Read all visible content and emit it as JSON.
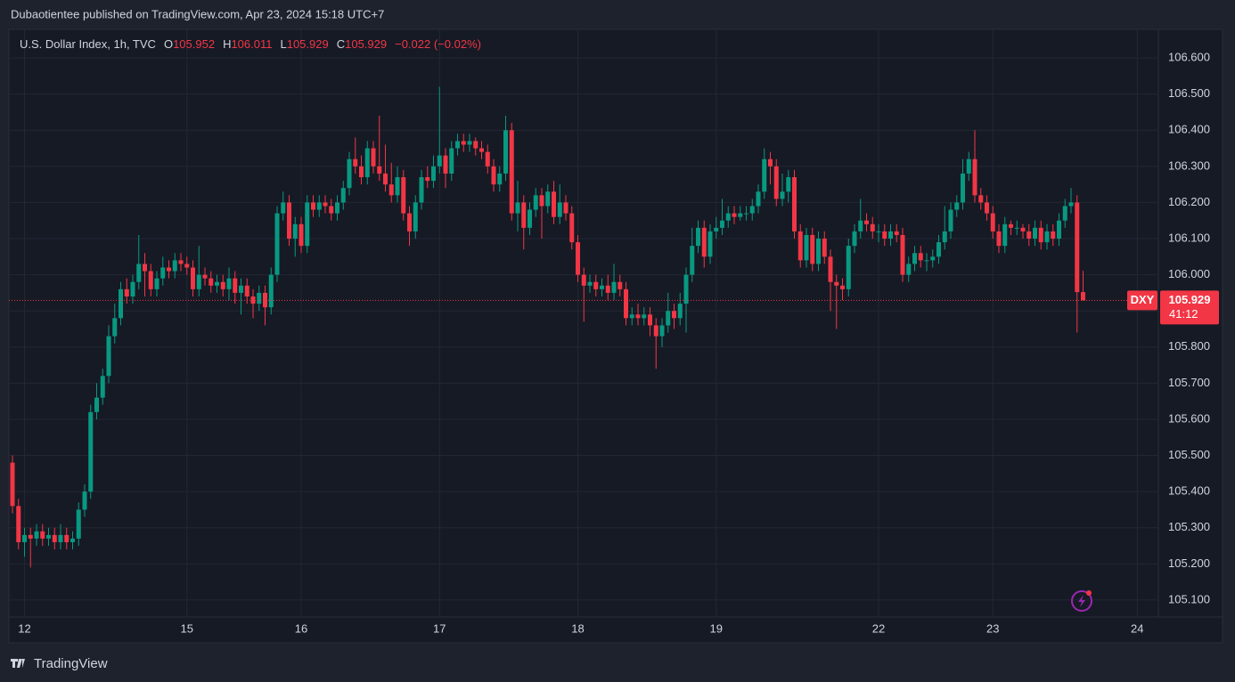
{
  "header": {
    "title": "Dubaotientee published on TradingView.com, Apr 23, 2024 15:18 UTC+7"
  },
  "footer": {
    "brand": "TradingView"
  },
  "chart_data": {
    "type": "candlestick",
    "title": "U.S. Dollar Index, 1h, TVC",
    "legend_labels": {
      "open": "O",
      "high": "H",
      "low": "L",
      "close": "C"
    },
    "change_label": "−0.022 (−0.02%)",
    "symbol": "DXY",
    "countdown": "41:12",
    "up_color": "#089981",
    "down_color": "#f23645",
    "grid": true,
    "ylim": [
      105.053,
      106.679
    ],
    "yticks": [
      {
        "value": 105.1,
        "label": "105.100"
      },
      {
        "value": 105.2,
        "label": "105.200"
      },
      {
        "value": 105.3,
        "label": "105.300"
      },
      {
        "value": 105.4,
        "label": "105.400"
      },
      {
        "value": 105.5,
        "label": "105.500"
      },
      {
        "value": 105.6,
        "label": "105.600"
      },
      {
        "value": 105.7,
        "label": "105.700"
      },
      {
        "value": 105.8,
        "label": "105.800"
      },
      {
        "value": 105.9,
        "label": "105.900"
      },
      {
        "value": 106.0,
        "label": "106.000"
      },
      {
        "value": 106.1,
        "label": "106.100"
      },
      {
        "value": 106.2,
        "label": "106.200"
      },
      {
        "value": 106.3,
        "label": "106.300"
      },
      {
        "value": 106.4,
        "label": "106.400"
      },
      {
        "value": 106.5,
        "label": "106.500"
      },
      {
        "value": 106.6,
        "label": "106.600"
      }
    ],
    "categories": [
      null,
      null,
      "12",
      null,
      null,
      null,
      null,
      null,
      null,
      null,
      null,
      null,
      null,
      null,
      null,
      null,
      null,
      null,
      null,
      null,
      null,
      null,
      null,
      null,
      null,
      null,
      null,
      null,
      null,
      "15",
      null,
      null,
      null,
      null,
      null,
      null,
      null,
      null,
      null,
      null,
      null,
      null,
      null,
      null,
      null,
      null,
      null,
      null,
      "16",
      null,
      null,
      null,
      null,
      null,
      null,
      null,
      null,
      null,
      null,
      null,
      null,
      null,
      null,
      null,
      null,
      null,
      null,
      null,
      null,
      null,
      null,
      "17",
      null,
      null,
      null,
      null,
      null,
      null,
      null,
      null,
      null,
      null,
      null,
      null,
      null,
      null,
      null,
      null,
      null,
      null,
      null,
      null,
      null,
      null,
      "18",
      null,
      null,
      null,
      null,
      null,
      null,
      null,
      null,
      null,
      null,
      null,
      null,
      null,
      null,
      null,
      null,
      null,
      null,
      null,
      null,
      null,
      null,
      "19",
      null,
      null,
      null,
      null,
      null,
      null,
      null,
      null,
      null,
      null,
      null,
      null,
      null,
      null,
      null,
      null,
      null,
      null,
      null,
      null,
      null,
      null,
      null,
      null,
      null,
      null,
      "22",
      null,
      null,
      null,
      null,
      null,
      null,
      null,
      null,
      null,
      null,
      null,
      null,
      null,
      null,
      null,
      null,
      null,
      null,
      "23",
      null,
      null,
      null,
      null,
      null,
      null,
      null,
      null,
      null,
      null,
      null,
      null,
      null,
      null,
      null,
      null,
      null,
      null,
      null,
      null,
      null,
      null,
      null,
      "24"
    ],
    "open": [
      105.48,
      105.36,
      105.26,
      105.28,
      105.27,
      105.29,
      105.27,
      105.28,
      105.26,
      105.28,
      105.26,
      105.27,
      105.35,
      105.4,
      105.62,
      105.66,
      105.72,
      105.83,
      105.88,
      105.96,
      105.94,
      105.98,
      106.03,
      106.01,
      105.96,
      105.99,
      106.02,
      106.01,
      106.04,
      106.03,
      106.02,
      105.96,
      106.0,
      105.99,
      105.97,
      105.98,
      105.96,
      105.99,
      105.95,
      105.97,
      105.94,
      105.92,
      105.95,
      105.91,
      106.0,
      106.17,
      106.2,
      106.1,
      106.14,
      106.08,
      106.2,
      106.18,
      106.2,
      106.19,
      106.17,
      106.2,
      106.24,
      106.32,
      106.3,
      106.27,
      106.35,
      106.3,
      106.28,
      106.25,
      106.22,
      106.27,
      106.17,
      106.12,
      106.2,
      106.27,
      106.26,
      106.3,
      106.33,
      106.28,
      106.35,
      106.37,
      106.36,
      106.37,
      106.35,
      106.34,
      106.3,
      106.25,
      106.28,
      106.4,
      106.17,
      106.2,
      106.13,
      106.18,
      106.22,
      106.19,
      106.23,
      106.16,
      106.2,
      106.17,
      106.09,
      106.0,
      105.97,
      105.98,
      105.96,
      105.97,
      105.95,
      105.98,
      105.96,
      105.88,
      105.89,
      105.88,
      105.89,
      105.86,
      105.83,
      105.86,
      105.9,
      105.88,
      105.92,
      106.0,
      106.08,
      106.13,
      106.05,
      106.12,
      106.13,
      106.15,
      106.17,
      106.16,
      106.17,
      106.17,
      106.19,
      106.23,
      106.32,
      106.3,
      106.21,
      106.23,
      106.27,
      106.12,
      106.04,
      106.11,
      106.03,
      106.1,
      106.05,
      105.98,
      105.97,
      105.96,
      106.08,
      106.12,
      106.15,
      106.14,
      106.12,
      106.12,
      106.1,
      106.12,
      106.11,
      106.0,
      106.03,
      106.06,
      106.04,
      106.04,
      106.05,
      106.09,
      106.12,
      106.18,
      106.2,
      106.28,
      106.32,
      106.22,
      106.2,
      106.17,
      106.12,
      106.08,
      106.14,
      106.13,
      106.13,
      106.12,
      106.1,
      106.13,
      106.09,
      106.12,
      106.1,
      106.15,
      106.19,
      106.2,
      105.952,
      null,
      null,
      null,
      null,
      null,
      null,
      null,
      null,
      null
    ],
    "high": [
      105.5,
      105.38,
      105.3,
      105.3,
      105.31,
      105.31,
      105.3,
      105.3,
      105.31,
      105.3,
      105.29,
      105.37,
      105.42,
      105.64,
      105.7,
      105.74,
      105.86,
      105.92,
      105.98,
      105.99,
      106.0,
      106.11,
      106.06,
      106.03,
      106.01,
      106.05,
      106.04,
      106.06,
      106.06,
      106.05,
      106.04,
      106.08,
      106.02,
      106.01,
      106.0,
      106.0,
      106.02,
      106.01,
      105.99,
      105.99,
      105.96,
      105.97,
      105.97,
      106.02,
      106.19,
      106.23,
      106.22,
      106.16,
      106.16,
      106.22,
      106.22,
      106.22,
      106.22,
      106.21,
      106.22,
      106.26,
      106.34,
      106.38,
      106.33,
      106.37,
      106.37,
      106.44,
      106.36,
      106.31,
      106.3,
      106.29,
      106.19,
      106.22,
      106.29,
      106.3,
      106.33,
      106.52,
      106.35,
      106.37,
      106.39,
      106.39,
      106.39,
      106.38,
      106.37,
      106.36,
      106.32,
      106.3,
      106.44,
      106.42,
      106.26,
      106.22,
      106.2,
      106.24,
      106.24,
      106.25,
      106.26,
      106.25,
      106.22,
      106.19,
      106.11,
      106.02,
      106.0,
      106.0,
      105.99,
      106.0,
      106.03,
      106.0,
      105.98,
      105.91,
      105.92,
      105.91,
      105.91,
      105.88,
      105.88,
      105.95,
      105.92,
      105.95,
      106.02,
      106.13,
      106.15,
      106.15,
      106.14,
      106.16,
      106.21,
      106.19,
      106.19,
      106.19,
      106.19,
      106.21,
      106.25,
      106.35,
      106.34,
      106.32,
      106.28,
      106.29,
      106.29,
      106.14,
      106.13,
      106.13,
      106.12,
      106.12,
      106.07,
      106.0,
      105.99,
      106.1,
      106.14,
      106.21,
      106.17,
      106.16,
      106.14,
      106.14,
      106.14,
      106.14,
      106.13,
      106.05,
      106.08,
      106.08,
      106.06,
      106.07,
      106.11,
      106.19,
      106.2,
      106.22,
      106.32,
      106.34,
      106.4,
      106.24,
      106.22,
      106.19,
      106.14,
      106.16,
      106.15,
      106.15,
      106.14,
      106.14,
      106.15,
      106.15,
      106.14,
      106.14,
      106.17,
      106.21,
      106.24,
      106.22,
      106.011,
      null,
      null,
      null,
      null,
      null,
      null,
      null,
      null,
      null
    ],
    "low": [
      105.34,
      105.24,
      105.22,
      105.19,
      105.25,
      105.25,
      105.25,
      105.24,
      105.24,
      105.24,
      105.24,
      105.25,
      105.33,
      105.38,
      105.6,
      105.64,
      105.7,
      105.81,
      105.86,
      105.92,
      105.92,
      105.96,
      105.94,
      105.94,
      105.94,
      105.97,
      105.99,
      105.99,
      106.01,
      106.0,
      105.94,
      105.94,
      105.97,
      105.95,
      105.95,
      105.94,
      105.93,
      105.92,
      105.89,
      105.92,
      105.88,
      105.9,
      105.86,
      105.89,
      105.98,
      106.15,
      106.08,
      106.05,
      106.06,
      106.06,
      106.16,
      106.16,
      106.17,
      106.15,
      106.15,
      106.18,
      106.22,
      106.28,
      106.25,
      106.25,
      106.28,
      106.26,
      106.23,
      106.2,
      106.2,
      106.15,
      106.08,
      106.1,
      106.18,
      106.24,
      106.24,
      106.28,
      106.24,
      106.26,
      106.33,
      106.34,
      106.34,
      106.33,
      106.32,
      106.28,
      106.23,
      106.23,
      106.26,
      106.15,
      106.12,
      106.07,
      106.11,
      106.16,
      106.1,
      106.17,
      106.14,
      106.14,
      106.15,
      106.07,
      105.98,
      105.87,
      105.95,
      105.94,
      105.94,
      105.93,
      105.93,
      105.94,
      105.86,
      105.86,
      105.86,
      105.86,
      105.83,
      105.74,
      105.8,
      105.84,
      105.85,
      105.86,
      105.84,
      105.98,
      106.06,
      106.02,
      106.03,
      106.1,
      106.11,
      106.13,
      106.14,
      106.15,
      106.15,
      106.15,
      106.17,
      106.21,
      106.25,
      106.19,
      106.19,
      106.2,
      106.1,
      106.02,
      106.02,
      106.01,
      106.01,
      106.03,
      105.9,
      105.85,
      105.93,
      105.94,
      106.06,
      106.1,
      106.12,
      106.1,
      106.09,
      106.08,
      106.08,
      106.09,
      105.98,
      105.98,
      106.01,
      106.02,
      106.01,
      106.02,
      106.03,
      106.07,
      106.1,
      106.16,
      106.18,
      106.26,
      106.2,
      106.18,
      106.15,
      106.1,
      106.06,
      106.06,
      106.11,
      106.11,
      106.1,
      106.08,
      106.08,
      106.07,
      106.07,
      106.08,
      106.08,
      106.13,
      106.17,
      105.84,
      105.929,
      null,
      null,
      null,
      null,
      null,
      null,
      null,
      null,
      null
    ],
    "close": [
      105.36,
      105.26,
      105.28,
      105.27,
      105.29,
      105.27,
      105.28,
      105.26,
      105.28,
      105.26,
      105.27,
      105.35,
      105.4,
      105.62,
      105.66,
      105.72,
      105.83,
      105.88,
      105.96,
      105.94,
      105.98,
      106.03,
      106.01,
      105.96,
      105.99,
      106.02,
      106.01,
      106.04,
      106.03,
      106.02,
      105.96,
      106.0,
      105.99,
      105.97,
      105.98,
      105.96,
      105.99,
      105.95,
      105.97,
      105.94,
      105.92,
      105.95,
      105.91,
      106.0,
      106.17,
      106.2,
      106.1,
      106.14,
      106.08,
      106.2,
      106.18,
      106.2,
      106.19,
      106.17,
      106.2,
      106.24,
      106.32,
      106.3,
      106.27,
      106.35,
      106.3,
      106.28,
      106.25,
      106.22,
      106.27,
      106.17,
      106.12,
      106.2,
      106.27,
      106.26,
      106.3,
      106.33,
      106.28,
      106.35,
      106.37,
      106.36,
      106.37,
      106.35,
      106.34,
      106.3,
      106.25,
      106.28,
      106.4,
      106.17,
      106.2,
      106.13,
      106.18,
      106.22,
      106.19,
      106.23,
      106.16,
      106.2,
      106.17,
      106.09,
      106.0,
      105.97,
      105.98,
      105.96,
      105.97,
      105.95,
      105.98,
      105.96,
      105.88,
      105.89,
      105.88,
      105.89,
      105.86,
      105.83,
      105.86,
      105.9,
      105.88,
      105.92,
      106.0,
      106.08,
      106.13,
      106.05,
      106.12,
      106.13,
      106.15,
      106.17,
      106.16,
      106.17,
      106.17,
      106.19,
      106.23,
      106.32,
      106.3,
      106.21,
      106.23,
      106.27,
      106.12,
      106.04,
      106.11,
      106.03,
      106.1,
      106.05,
      105.98,
      105.97,
      105.96,
      106.08,
      106.12,
      106.15,
      106.14,
      106.12,
      106.12,
      106.1,
      106.12,
      106.11,
      106.0,
      106.03,
      106.06,
      106.04,
      106.04,
      106.05,
      106.09,
      106.12,
      106.18,
      106.2,
      106.28,
      106.32,
      106.22,
      106.2,
      106.17,
      106.12,
      106.08,
      106.14,
      106.13,
      106.13,
      106.12,
      106.1,
      106.13,
      106.09,
      106.12,
      106.1,
      106.15,
      106.19,
      106.2,
      105.952,
      105.929,
      null,
      null,
      null,
      null,
      null,
      null,
      null,
      null,
      null
    ]
  }
}
